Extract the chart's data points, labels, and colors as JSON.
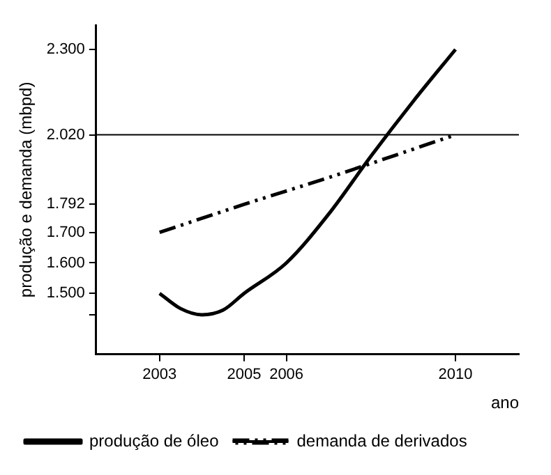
{
  "chart_data": {
    "type": "line",
    "xlabel": "ano",
    "ylabel": "produção e demanda (mbpd)",
    "xlim": [
      2001.5,
      2011.5
    ],
    "xticks": [
      2003,
      2005,
      2006,
      2010
    ],
    "ylim": [
      1300,
      2380
    ],
    "yticks": [
      {
        "value": 1430,
        "label": null
      },
      {
        "value": 1500,
        "label": "1.500"
      },
      {
        "value": 1600,
        "label": "1.600"
      },
      {
        "value": 1700,
        "label": "1.700"
      },
      {
        "value": 1792,
        "label": "1.792"
      },
      {
        "value": 2020,
        "label": "2.020"
      },
      {
        "value": 2300,
        "label": "2.300"
      }
    ],
    "series": [
      {
        "name": "produção de óleo",
        "color": "#000000",
        "line_style": "solid",
        "x": [
          2003,
          2003.5,
          2004,
          2004.5,
          2005,
          2006,
          2007,
          2008,
          2009,
          2010
        ],
        "values": [
          1500,
          1450,
          1430,
          1445,
          1500,
          1600,
          1760,
          1950,
          2130,
          2300
        ]
      },
      {
        "name": "demanda de derivados",
        "color": "#000000",
        "line_style": "dashed",
        "x": [
          2003,
          2005,
          2007,
          2010
        ],
        "values": [
          1700,
          1792,
          1880,
          2020
        ]
      }
    ],
    "ref_lines": [
      {
        "axis": "y",
        "value": 2020,
        "color": "#000000",
        "line_style": "solid"
      }
    ],
    "grid": false,
    "legend": "bottom left",
    "marker": "none"
  }
}
